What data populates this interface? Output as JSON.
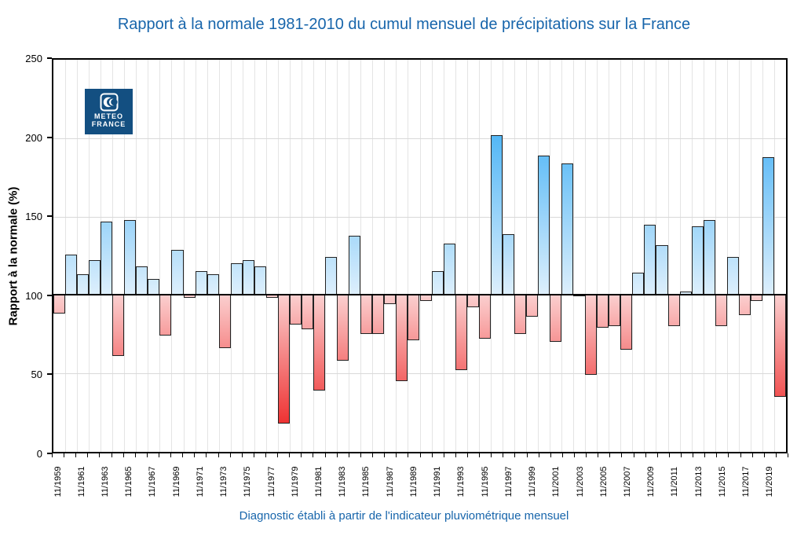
{
  "page": {
    "title": "Rapport à la normale 1981-2010 du cumul mensuel de précipitations sur la France",
    "caption": "Diagnostic établi à partir de l'indicateur pluviométrique mensuel",
    "title_color": "#1765AB",
    "background_color": "#FFFFFF"
  },
  "logo": {
    "line1": "METEO",
    "line2": "FRANCE",
    "bg_color": "#134F81"
  },
  "chart_data": {
    "type": "bar",
    "title": "Rapport à la normale 1981-2010 du cumul mensuel de précipitations sur la France",
    "xlabel": "",
    "ylabel": "Rapport à la normale (%)",
    "ylim": [
      0,
      250
    ],
    "yticks": [
      0,
      50,
      100,
      150,
      200,
      250
    ],
    "baseline": 100,
    "grid": true,
    "legend": null,
    "x_tick_labels": [
      "11/1959",
      "11/1961",
      "11/1963",
      "11/1965",
      "11/1967",
      "11/1969",
      "11/1971",
      "11/1973",
      "11/1975",
      "11/1977",
      "11/1979",
      "11/1981",
      "11/1983",
      "11/1985",
      "11/1987",
      "11/1989",
      "11/1991",
      "11/1993",
      "11/1995",
      "11/1997",
      "11/1999",
      "11/2001",
      "11/2003",
      "11/2005",
      "11/2007",
      "11/2009",
      "11/2011",
      "11/2013",
      "11/2015",
      "11/2017",
      "11/2019"
    ],
    "x": [
      "11/1959",
      "11/1960",
      "11/1961",
      "11/1962",
      "11/1963",
      "11/1964",
      "11/1965",
      "11/1966",
      "11/1967",
      "11/1968",
      "11/1969",
      "11/1970",
      "11/1971",
      "11/1972",
      "11/1973",
      "11/1974",
      "11/1975",
      "11/1976",
      "11/1977",
      "11/1978",
      "11/1979",
      "11/1980",
      "11/1981",
      "11/1982",
      "11/1983",
      "11/1984",
      "11/1985",
      "11/1986",
      "11/1987",
      "11/1988",
      "11/1989",
      "11/1990",
      "11/1991",
      "11/1992",
      "11/1993",
      "11/1994",
      "11/1995",
      "11/1996",
      "11/1997",
      "11/1998",
      "11/1999",
      "11/2000",
      "11/2001",
      "11/2002",
      "11/2003",
      "11/2004",
      "11/2005",
      "11/2006",
      "11/2007",
      "11/2008",
      "11/2009",
      "11/2010",
      "11/2011",
      "11/2012",
      "11/2013",
      "11/2014",
      "11/2015",
      "11/2016",
      "11/2017",
      "11/2018",
      "11/2019",
      "11/2020"
    ],
    "values": [
      88,
      126,
      113,
      122,
      147,
      61,
      148,
      118,
      110,
      74,
      129,
      98,
      115,
      113,
      66,
      120,
      122,
      118,
      98,
      18,
      81,
      78,
      39,
      124,
      58,
      138,
      75,
      75,
      94,
      45,
      71,
      96,
      115,
      133,
      52,
      92,
      72,
      202,
      139,
      75,
      86,
      189,
      70,
      184,
      99,
      49,
      79,
      80,
      65,
      114,
      145,
      132,
      80,
      102,
      144,
      148,
      80,
      124,
      87,
      96,
      188,
      35
    ],
    "colors": {
      "above_strong": "#4FB5F6",
      "above_light": "#DDEFFC",
      "below_strong": "#EE2D2D",
      "below_light": "#FBCFCF",
      "baseline_line": "#000000",
      "grid": "#E4E4E4",
      "frame": "#000000"
    }
  }
}
